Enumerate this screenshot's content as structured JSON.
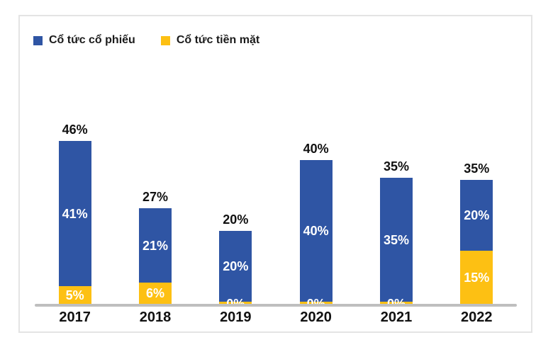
{
  "chart_data": {
    "type": "bar",
    "stacked": true,
    "title": "",
    "xlabel": "",
    "ylabel": "",
    "categories": [
      "2017",
      "2018",
      "2019",
      "2020",
      "2021",
      "2022"
    ],
    "series": [
      {
        "name": "Cổ tức cổ phiếu",
        "color": "#2f55a4",
        "values": [
          41,
          21,
          20,
          40,
          35,
          20
        ],
        "labels": [
          "41%",
          "21%",
          "20%",
          "40%",
          "35%",
          "20%"
        ]
      },
      {
        "name": "Cổ tức tiền mặt",
        "color": "#fdc013",
        "values": [
          5,
          6,
          0,
          0,
          0,
          15
        ],
        "labels": [
          "5%",
          "6%",
          "0%",
          "0%",
          "0%",
          "15%"
        ]
      }
    ],
    "totals": [
      46,
      27,
      20,
      40,
      35,
      35
    ],
    "total_labels": [
      "46%",
      "27%",
      "20%",
      "40%",
      "35%",
      "35%"
    ],
    "ylim": [
      0,
      50
    ],
    "grid": false,
    "legend_position": "top-left",
    "value_unit": "%"
  },
  "colors": {
    "axis_line": "#bfbfbf",
    "panel_border": "#e4e4e4",
    "segment_text": "#ffffff",
    "label_text": "#111111"
  }
}
